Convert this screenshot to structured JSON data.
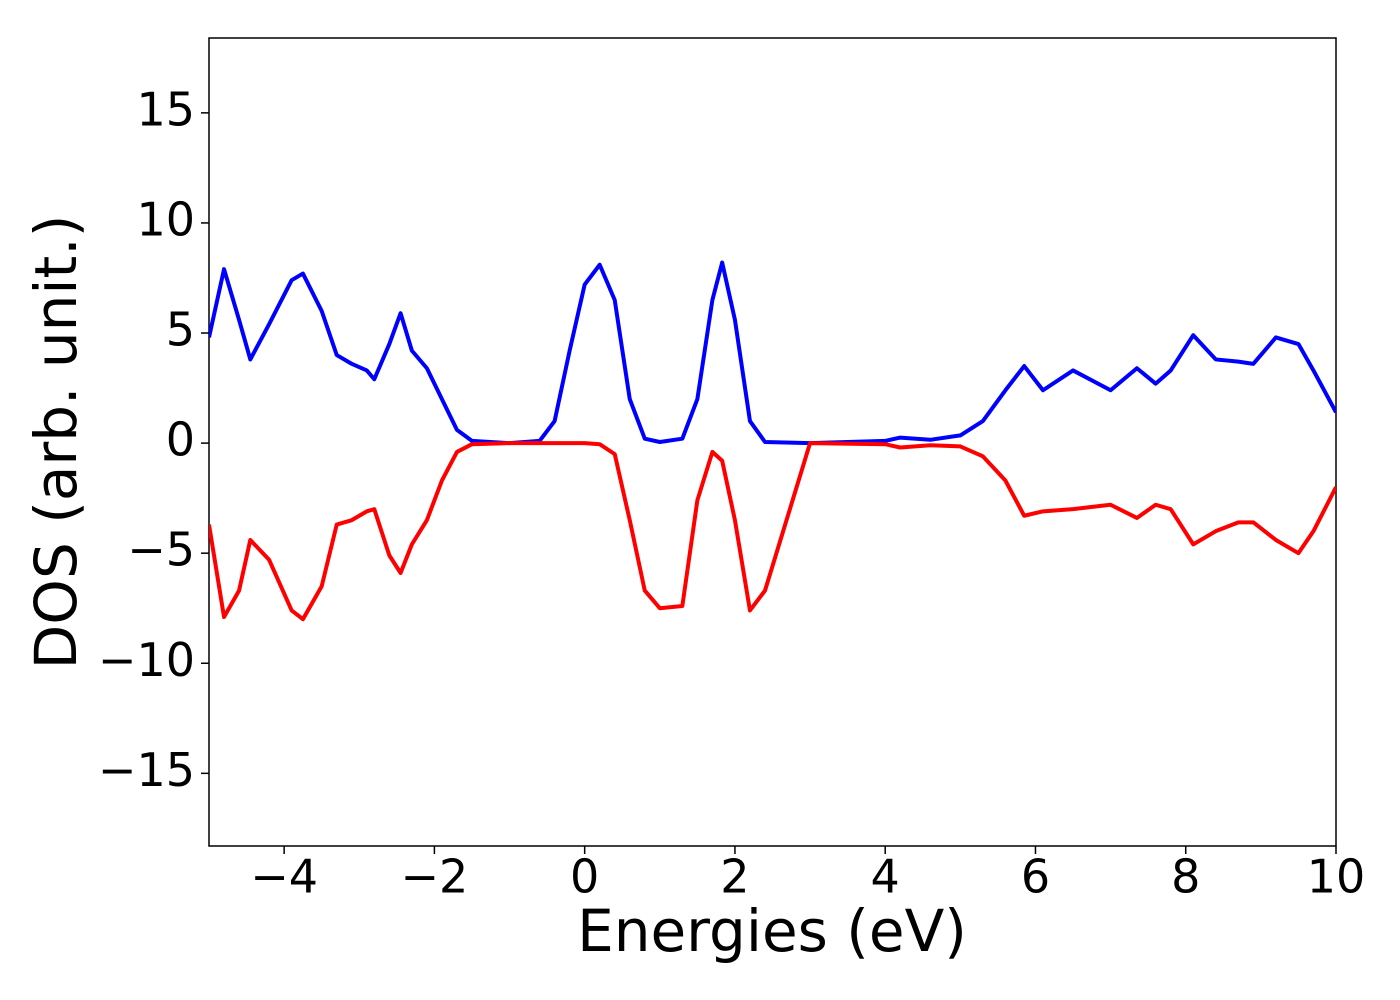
{
  "chart_data": {
    "type": "line",
    "x_label": "Energies (eV)",
    "y_label": "DOS (arb. unit.)",
    "x": [
      -5,
      -4.8,
      -4.6,
      -4.45,
      -4.2,
      -3.9,
      -3.75,
      -3.5,
      -3.3,
      -3.1,
      -2.9,
      -2.8,
      -2.6,
      -2.45,
      -2.3,
      -2.1,
      -1.9,
      -1.7,
      -1.5,
      -1,
      -0.6,
      -0.4,
      -0.2,
      0,
      0.2,
      0.4,
      0.6,
      0.8,
      1.0,
      1.3,
      1.5,
      1.7,
      1.83,
      2.0,
      2.2,
      2.4,
      3,
      4,
      4.2,
      4.6,
      5,
      5.3,
      5.6,
      5.85,
      6.1,
      6.5,
      7,
      7.35,
      7.6,
      7.8,
      8.1,
      8.4,
      8.7,
      8.9,
      9.2,
      9.5,
      9.7,
      10
    ],
    "series": [
      {
        "color": "#0000ff",
        "values": [
          4.8,
          7.9,
          5.6,
          3.8,
          5.4,
          7.4,
          7.7,
          6,
          4,
          3.6,
          3.3,
          2.9,
          4.5,
          5.9,
          4.2,
          3.4,
          2,
          0.6,
          0.1,
          0,
          0.1,
          1,
          4.2,
          7.2,
          8.1,
          6.5,
          2,
          0.2,
          0.05,
          0.2,
          2,
          6.5,
          8.2,
          5.6,
          1,
          0.05,
          0,
          0.1,
          0.25,
          0.15,
          0.35,
          1,
          2.4,
          3.5,
          2.4,
          3.3,
          2.4,
          3.4,
          2.7,
          3.3,
          4.9,
          3.8,
          3.7,
          3.6,
          4.8,
          4.5,
          3.3,
          1.4
        ]
      },
      {
        "color": "#ff0000",
        "values": [
          -3.7,
          -7.9,
          -6.7,
          -4.4,
          -5.3,
          -7.6,
          -8.0,
          -6.5,
          -3.7,
          -3.5,
          -3.1,
          -3.0,
          -5.1,
          -5.9,
          -4.6,
          -3.5,
          -1.7,
          -0.4,
          -0.05,
          0,
          0,
          0,
          0,
          0,
          -0.05,
          -0.5,
          -3.5,
          -6.7,
          -7.5,
          -7.4,
          -2.6,
          -0.4,
          -0.8,
          -3.5,
          -7.6,
          -6.7,
          0,
          -0.05,
          -0.2,
          -0.1,
          -0.15,
          -0.6,
          -1.7,
          -3.3,
          -3.1,
          -3.0,
          -2.8,
          -3.4,
          -2.8,
          -3.0,
          -4.6,
          -4.0,
          -3.6,
          -3.6,
          -4.4,
          -5.0,
          -4.0,
          -2.0
        ]
      }
    ],
    "xlim": [
      -5,
      10
    ],
    "xticks": [
      {
        "value": -4,
        "label": "−4"
      },
      {
        "value": -2,
        "label": "−2"
      },
      0,
      2,
      4,
      6,
      8,
      10
    ],
    "ylim": [
      -18.3,
      18.4
    ],
    "yticks": [
      {
        "value": -15,
        "label": "−15"
      },
      {
        "value": -10,
        "label": "−10"
      },
      {
        "value": -5,
        "label": "−5"
      },
      0,
      5,
      10,
      15
    ],
    "grid": false
  }
}
